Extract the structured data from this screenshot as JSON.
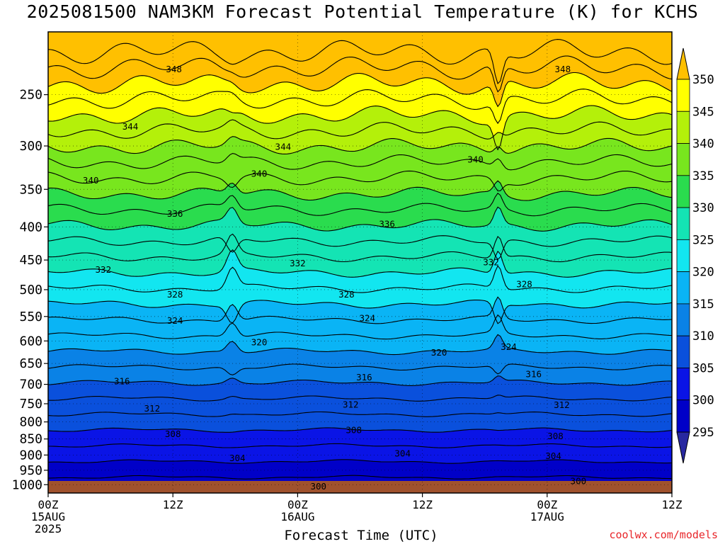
{
  "chart_data": {
    "type": "contour",
    "title": "2025081500 NAM3KM Forecast Potential Temperature (K) for KCHS",
    "xlabel": "Forecast Time (UTC)",
    "ylabel": "",
    "x_ticks": [
      {
        "hour": 0,
        "lines": [
          "00Z",
          "15AUG",
          "2025"
        ]
      },
      {
        "hour": 12,
        "lines": [
          "12Z"
        ]
      },
      {
        "hour": 24,
        "lines": [
          "00Z",
          "16AUG"
        ]
      },
      {
        "hour": 36,
        "lines": [
          "12Z"
        ]
      },
      {
        "hour": 48,
        "lines": [
          "00Z",
          "17AUG"
        ]
      },
      {
        "hour": 60,
        "lines": [
          "12Z"
        ]
      }
    ],
    "x_range_hours": [
      0,
      60
    ],
    "y_scale": "log pressure (inverted)",
    "y_ticks": [
      250,
      300,
      350,
      400,
      450,
      500,
      550,
      600,
      650,
      700,
      750,
      800,
      850,
      900,
      950,
      1000
    ],
    "y_range": [
      1030,
      200
    ],
    "grid": true,
    "colorbar": {
      "levels": [
        350,
        345,
        340,
        335,
        330,
        325,
        320,
        315,
        310,
        305,
        300,
        295
      ],
      "colors": [
        "#ffc000",
        "#ffff00",
        "#b4f00a",
        "#78e61e",
        "#2adc4e",
        "#14e4b4",
        "#12e6f0",
        "#0ab4f5",
        "#0a82e6",
        "#0a50dc",
        "#0a14e6",
        "#0000c8",
        "#2828a0"
      ]
    },
    "contour_interval": 4,
    "contour_labels": [
      {
        "value": "348",
        "hour": 12.1,
        "p": 229
      },
      {
        "value": "348",
        "hour": 49.5,
        "p": 229
      },
      {
        "value": "344",
        "hour": 7.9,
        "p": 281
      },
      {
        "value": "344",
        "hour": 22.6,
        "p": 302
      },
      {
        "value": "340",
        "hour": 4.1,
        "p": 340
      },
      {
        "value": "340",
        "hour": 20.3,
        "p": 332
      },
      {
        "value": "340",
        "hour": 41.1,
        "p": 316
      },
      {
        "value": "336",
        "hour": 12.2,
        "p": 383
      },
      {
        "value": "336",
        "hour": 32.6,
        "p": 397
      },
      {
        "value": "332",
        "hour": 5.3,
        "p": 467
      },
      {
        "value": "332",
        "hour": 24.0,
        "p": 457
      },
      {
        "value": "332",
        "hour": 42.6,
        "p": 455
      },
      {
        "value": "328",
        "hour": 12.2,
        "p": 510
      },
      {
        "value": "328",
        "hour": 28.7,
        "p": 510
      },
      {
        "value": "328",
        "hour": 45.8,
        "p": 492
      },
      {
        "value": "324",
        "hour": 12.2,
        "p": 560
      },
      {
        "value": "324",
        "hour": 30.7,
        "p": 555
      },
      {
        "value": "324",
        "hour": 44.3,
        "p": 615
      },
      {
        "value": "320",
        "hour": 20.3,
        "p": 605
      },
      {
        "value": "320",
        "hour": 37.6,
        "p": 627
      },
      {
        "value": "316",
        "hour": 7.1,
        "p": 695
      },
      {
        "value": "316",
        "hour": 30.4,
        "p": 685
      },
      {
        "value": "316",
        "hour": 46.7,
        "p": 677
      },
      {
        "value": "312",
        "hour": 10.0,
        "p": 765
      },
      {
        "value": "312",
        "hour": 29.1,
        "p": 755
      },
      {
        "value": "312",
        "hour": 49.4,
        "p": 756
      },
      {
        "value": "308",
        "hour": 12.0,
        "p": 838
      },
      {
        "value": "308",
        "hour": 29.4,
        "p": 826
      },
      {
        "value": "308",
        "hour": 48.8,
        "p": 844
      },
      {
        "value": "304",
        "hour": 18.2,
        "p": 913
      },
      {
        "value": "304",
        "hour": 34.1,
        "p": 898
      },
      {
        "value": "304",
        "hour": 48.6,
        "p": 906
      },
      {
        "value": "300",
        "hour": 26.0,
        "p": 1010
      },
      {
        "value": "300",
        "hour": 51.0,
        "p": 990
      }
    ]
  },
  "credit": "coolwx.com/models"
}
